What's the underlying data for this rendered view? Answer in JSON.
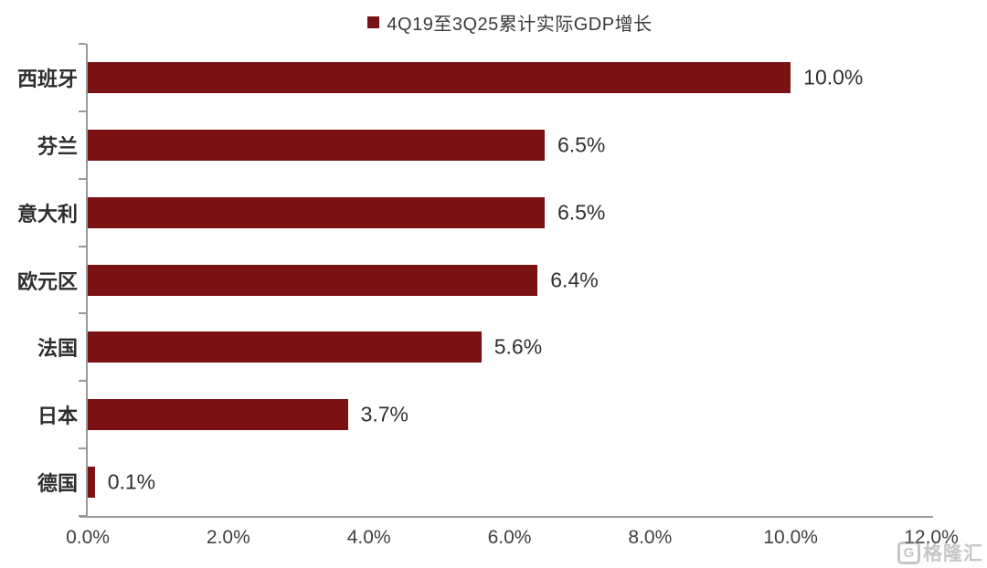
{
  "chart_data": {
    "type": "bar",
    "orientation": "horizontal",
    "title": "4Q19至3Q25累计实际GDP增长",
    "legend_position": "top-center",
    "categories": [
      "西班牙",
      "芬兰",
      "意大利",
      "欧元区",
      "法国",
      "日本",
      "德国"
    ],
    "values": [
      10.0,
      6.5,
      6.5,
      6.4,
      5.6,
      3.7,
      0.1
    ],
    "value_labels": [
      "10.0%",
      "6.5%",
      "6.5%",
      "6.4%",
      "5.6%",
      "3.7%",
      "0.1%"
    ],
    "xlim": [
      0,
      12
    ],
    "x_tick_values": [
      0,
      2,
      4,
      6,
      8,
      10,
      12
    ],
    "x_tick_labels": [
      "0.0%",
      "2.0%",
      "4.0%",
      "6.0%",
      "8.0%",
      "10.0%",
      "12.0%"
    ],
    "grid": false,
    "bar_color": "#7A1113",
    "axis_color": "#999999"
  },
  "watermark": {
    "logo_letter": "G",
    "text": "格隆汇"
  }
}
